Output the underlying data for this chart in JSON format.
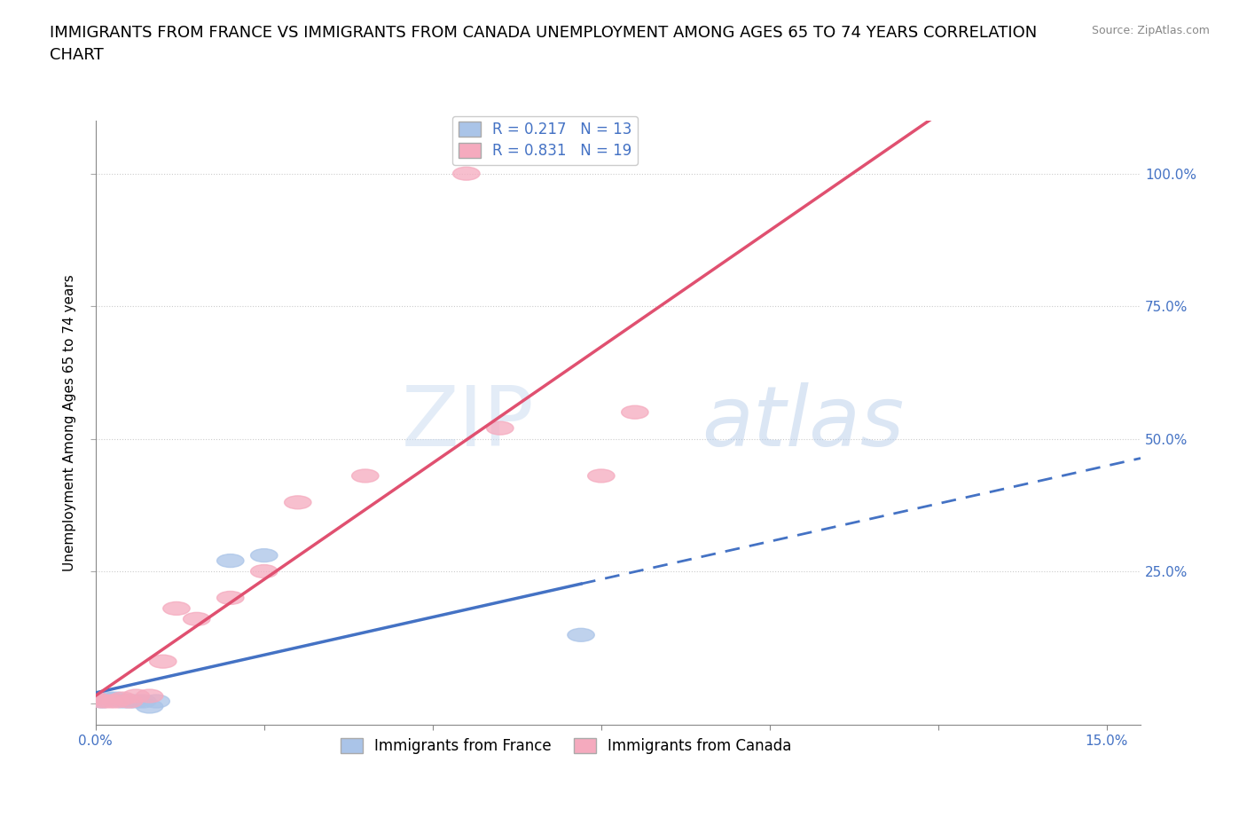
{
  "title": "IMMIGRANTS FROM FRANCE VS IMMIGRANTS FROM CANADA UNEMPLOYMENT AMONG AGES 65 TO 74 YEARS CORRELATION\nCHART",
  "source": "Source: ZipAtlas.com",
  "ylabel": "Unemployment Among Ages 65 to 74 years",
  "xlim": [
    0.0,
    0.155
  ],
  "ylim": [
    -0.04,
    1.1
  ],
  "xticks": [
    0.0,
    0.025,
    0.05,
    0.075,
    0.1,
    0.125,
    0.15
  ],
  "xticklabels": [
    "0.0%",
    "",
    "",
    "",
    "",
    "",
    "15.0%"
  ],
  "yticks": [
    0.0,
    0.25,
    0.5,
    0.75,
    1.0
  ],
  "yticklabels": [
    "",
    "25.0%",
    "50.0%",
    "75.0%",
    "100.0%"
  ],
  "france_R": 0.217,
  "france_N": 13,
  "canada_R": 0.831,
  "canada_N": 19,
  "france_color": "#aac4e8",
  "canada_color": "#f5aabe",
  "france_line_color": "#4472c4",
  "canada_line_color": "#e05070",
  "background_color": "#ffffff",
  "watermark_zip": "ZIP",
  "watermark_atlas": "atlas",
  "france_x": [
    0.0,
    0.001,
    0.002,
    0.003,
    0.004,
    0.005,
    0.006,
    0.007,
    0.008,
    0.009,
    0.02,
    0.025,
    0.072
  ],
  "france_y": [
    0.01,
    0.005,
    0.01,
    0.01,
    0.005,
    0.005,
    0.005,
    0.005,
    -0.005,
    0.005,
    0.27,
    0.28,
    0.13
  ],
  "canada_x": [
    0.0,
    0.001,
    0.002,
    0.003,
    0.004,
    0.005,
    0.006,
    0.008,
    0.01,
    0.012,
    0.015,
    0.02,
    0.025,
    0.03,
    0.04,
    0.055,
    0.06,
    0.075,
    0.08
  ],
  "canada_y": [
    0.01,
    0.005,
    0.005,
    0.005,
    0.01,
    0.005,
    0.015,
    0.015,
    0.08,
    0.18,
    0.16,
    0.2,
    0.25,
    0.38,
    0.43,
    1.0,
    0.52,
    0.43,
    0.55
  ],
  "grid_color": "#cccccc",
  "title_fontsize": 13,
  "axis_label_fontsize": 11,
  "tick_fontsize": 11,
  "legend_fontsize": 12,
  "france_line_solid_xmax": 0.072,
  "france_line_dash_xmax": 0.155,
  "canada_line_xmin": 0.0,
  "canada_line_xmax": 0.155
}
